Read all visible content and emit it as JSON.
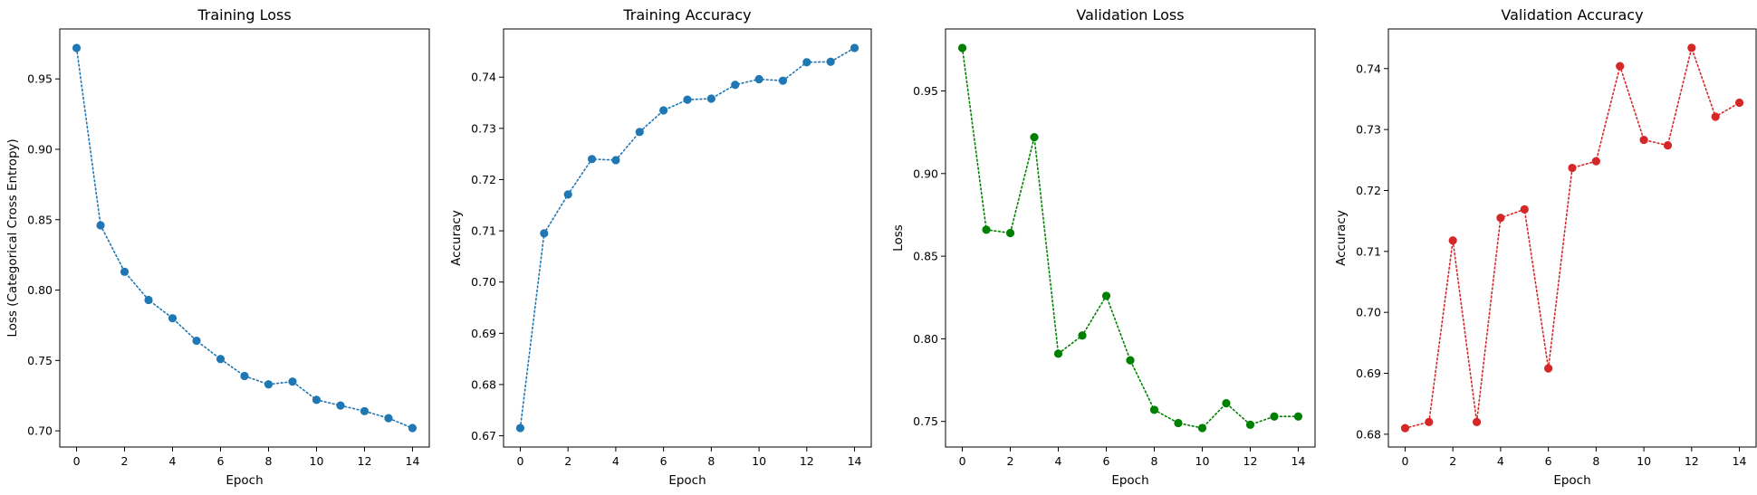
{
  "chart_data": [
    {
      "type": "line",
      "title": "Training Loss",
      "xlabel": "Epoch",
      "ylabel": "Loss (Categorical Cross Entropy)",
      "x": [
        0,
        1,
        2,
        3,
        4,
        5,
        6,
        7,
        8,
        9,
        10,
        11,
        12,
        13,
        14
      ],
      "values": [
        0.972,
        0.846,
        0.813,
        0.793,
        0.78,
        0.764,
        0.751,
        0.739,
        0.733,
        0.735,
        0.722,
        0.718,
        0.714,
        0.709,
        0.702
      ],
      "xlim": [
        -0.7,
        14.7
      ],
      "ylim": [
        0.6885,
        0.9855
      ],
      "xticks": [
        0,
        2,
        4,
        6,
        8,
        10,
        12,
        14
      ],
      "xtick_labels": [
        "0",
        "2",
        "4",
        "6",
        "8",
        "10",
        "12",
        "14"
      ],
      "yticks": [
        0.7,
        0.75,
        0.8,
        0.85,
        0.9,
        0.95
      ],
      "ytick_labels": [
        "0.70",
        "0.75",
        "0.80",
        "0.85",
        "0.90",
        "0.95"
      ],
      "color": "#1f77b4",
      "line_style": "dotted",
      "marker": "circle"
    },
    {
      "type": "line",
      "title": "Training Accuracy",
      "xlabel": "Epoch",
      "ylabel": "Accuracy",
      "x": [
        0,
        1,
        2,
        3,
        4,
        5,
        6,
        7,
        8,
        9,
        10,
        11,
        12,
        13,
        14
      ],
      "values": [
        0.6715,
        0.7095,
        0.7171,
        0.724,
        0.7238,
        0.7293,
        0.7335,
        0.7356,
        0.7358,
        0.7385,
        0.7396,
        0.7393,
        0.7429,
        0.743,
        0.7457
      ],
      "xlim": [
        -0.7,
        14.7
      ],
      "ylim": [
        0.6678,
        0.7494
      ],
      "xticks": [
        0,
        2,
        4,
        6,
        8,
        10,
        12,
        14
      ],
      "xtick_labels": [
        "0",
        "2",
        "4",
        "6",
        "8",
        "10",
        "12",
        "14"
      ],
      "yticks": [
        0.67,
        0.68,
        0.69,
        0.7,
        0.71,
        0.72,
        0.73,
        0.74
      ],
      "ytick_labels": [
        "0.67",
        "0.68",
        "0.69",
        "0.70",
        "0.71",
        "0.72",
        "0.73",
        "0.74"
      ],
      "color": "#1f77b4",
      "line_style": "dotted",
      "marker": "circle"
    },
    {
      "type": "line",
      "title": "Validation Loss",
      "xlabel": "Epoch",
      "ylabel": "Loss",
      "x": [
        0,
        1,
        2,
        3,
        4,
        5,
        6,
        7,
        8,
        9,
        10,
        11,
        12,
        13,
        14
      ],
      "values": [
        0.976,
        0.866,
        0.864,
        0.922,
        0.791,
        0.802,
        0.826,
        0.787,
        0.757,
        0.749,
        0.746,
        0.761,
        0.748,
        0.753,
        0.753
      ],
      "xlim": [
        -0.7,
        14.7
      ],
      "ylim": [
        0.7345,
        0.9875
      ],
      "xticks": [
        0,
        2,
        4,
        6,
        8,
        10,
        12,
        14
      ],
      "xtick_labels": [
        "0",
        "2",
        "4",
        "6",
        "8",
        "10",
        "12",
        "14"
      ],
      "yticks": [
        0.75,
        0.8,
        0.85,
        0.9,
        0.95
      ],
      "ytick_labels": [
        "0.75",
        "0.80",
        "0.85",
        "0.90",
        "0.95"
      ],
      "color": "#008000",
      "line_style": "dotted",
      "marker": "circle"
    },
    {
      "type": "line",
      "title": "Validation Accuracy",
      "xlabel": "Epoch",
      "ylabel": "Accuracy",
      "x": [
        0,
        1,
        2,
        3,
        4,
        5,
        6,
        7,
        8,
        9,
        10,
        11,
        12,
        13,
        14
      ],
      "values": [
        0.681,
        0.682,
        0.7118,
        0.682,
        0.7155,
        0.7169,
        0.6908,
        0.7237,
        0.7248,
        0.7404,
        0.7283,
        0.7274,
        0.7434,
        0.7321,
        0.7344
      ],
      "xlim": [
        -0.7,
        14.7
      ],
      "ylim": [
        0.6779,
        0.7465
      ],
      "xticks": [
        0,
        2,
        4,
        6,
        8,
        10,
        12,
        14
      ],
      "xtick_labels": [
        "0",
        "2",
        "4",
        "6",
        "8",
        "10",
        "12",
        "14"
      ],
      "yticks": [
        0.68,
        0.69,
        0.7,
        0.71,
        0.72,
        0.73,
        0.74
      ],
      "ytick_labels": [
        "0.68",
        "0.69",
        "0.70",
        "0.71",
        "0.72",
        "0.73",
        "0.74"
      ],
      "color": "#d62728",
      "line_style": "dotted",
      "marker": "circle"
    }
  ]
}
